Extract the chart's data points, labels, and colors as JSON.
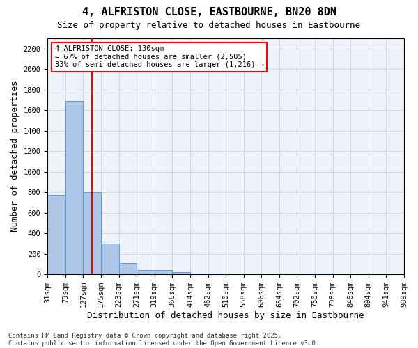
{
  "title_line1": "4, ALFRISTON CLOSE, EASTBOURNE, BN20 8DN",
  "title_line2": "Size of property relative to detached houses in Eastbourne",
  "xlabel": "Distribution of detached houses by size in Eastbourne",
  "ylabel": "Number of detached properties",
  "bin_labels": [
    "31sqm",
    "79sqm",
    "127sqm",
    "175sqm",
    "223sqm",
    "271sqm",
    "319sqm",
    "366sqm",
    "414sqm",
    "462sqm",
    "510sqm",
    "558sqm",
    "606sqm",
    "654sqm",
    "702sqm",
    "750sqm",
    "798sqm",
    "846sqm",
    "894sqm",
    "941sqm",
    "989sqm"
  ],
  "bar_values": [
    775,
    1690,
    800,
    300,
    110,
    45,
    45,
    20,
    5,
    5,
    2,
    2,
    2,
    2,
    2,
    5,
    2,
    2,
    2,
    2
  ],
  "bar_color": "#aec6e8",
  "bar_edgecolor": "#5b9bd5",
  "red_line_index": 2,
  "annotation_text": "4 ALFRISTON CLOSE: 130sqm\n← 67% of detached houses are smaller (2,505)\n33% of semi-detached houses are larger (1,216) →",
  "ylim": [
    0,
    2300
  ],
  "yticks": [
    0,
    200,
    400,
    600,
    800,
    1000,
    1200,
    1400,
    1600,
    1800,
    2000,
    2200
  ],
  "grid_color": "#d0d8e8",
  "background_color": "#eef2f9",
  "footer_text": "Contains HM Land Registry data © Crown copyright and database right 2025.\nContains public sector information licensed under the Open Government Licence v3.0.",
  "title_fontsize": 11,
  "subtitle_fontsize": 9,
  "axis_label_fontsize": 9,
  "tick_fontsize": 7.5,
  "annotation_fontsize": 7.5,
  "footer_fontsize": 6.5
}
